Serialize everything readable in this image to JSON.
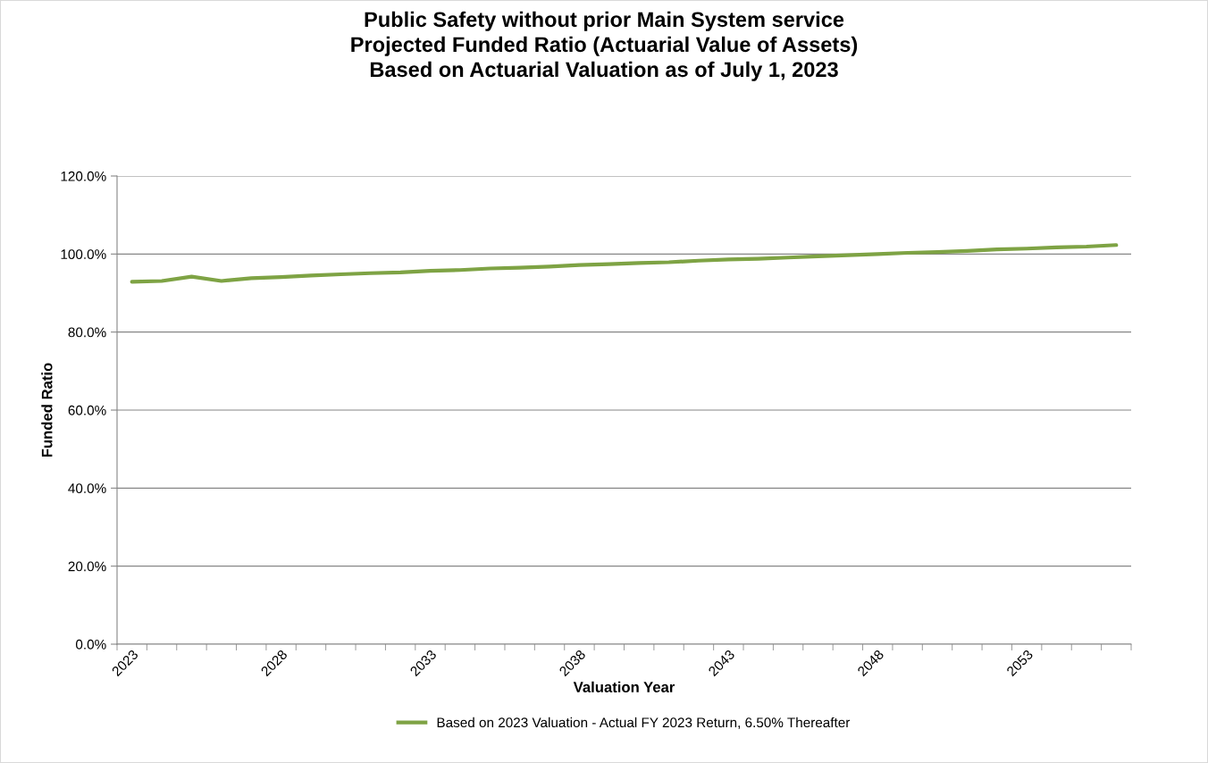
{
  "chart_data": {
    "type": "line",
    "title": "Public Safety without prior Main System service\nProjected Funded Ratio (Actuarial Value of Assets)\nBased on Actuarial Valuation as of July 1, 2023",
    "xlabel": "Valuation Year",
    "ylabel": "Funded Ratio",
    "categories": [
      "2023",
      null,
      null,
      null,
      null,
      "2028",
      null,
      null,
      null,
      null,
      "2033",
      null,
      null,
      null,
      null,
      "2038",
      null,
      null,
      null,
      null,
      "2043",
      null,
      null,
      null,
      null,
      "2048",
      null,
      null,
      null,
      null,
      "2053",
      null,
      null,
      null
    ],
    "series": [
      {
        "name": "Based on 2023 Valuation - Actual FY 2023 Return, 6.50% Thereafter",
        "color": "#7ea344",
        "values": [
          92.9,
          93.1,
          94.2,
          93.1,
          93.8,
          94.1,
          94.5,
          94.8,
          95.1,
          95.3,
          95.7,
          95.9,
          96.3,
          96.5,
          96.8,
          97.2,
          97.4,
          97.7,
          97.9,
          98.3,
          98.6,
          98.8,
          99.1,
          99.4,
          99.7,
          100.0,
          100.3,
          100.5,
          100.8,
          101.2,
          101.4,
          101.7,
          101.9,
          102.3
        ]
      }
    ],
    "ylim": [
      0,
      120
    ],
    "yticks": [
      {
        "value": 0,
        "label": "0.0%"
      },
      {
        "value": 20,
        "label": "20.0%"
      },
      {
        "value": 40,
        "label": "40.0%"
      },
      {
        "value": 60,
        "label": "60.0%"
      },
      {
        "value": 80,
        "label": "80.0%"
      },
      {
        "value": 100,
        "label": "100.0%"
      },
      {
        "value": 120,
        "label": "120.0%"
      }
    ],
    "grid": "y",
    "legend": "bottom",
    "marker": "none",
    "line_style": "solid"
  }
}
